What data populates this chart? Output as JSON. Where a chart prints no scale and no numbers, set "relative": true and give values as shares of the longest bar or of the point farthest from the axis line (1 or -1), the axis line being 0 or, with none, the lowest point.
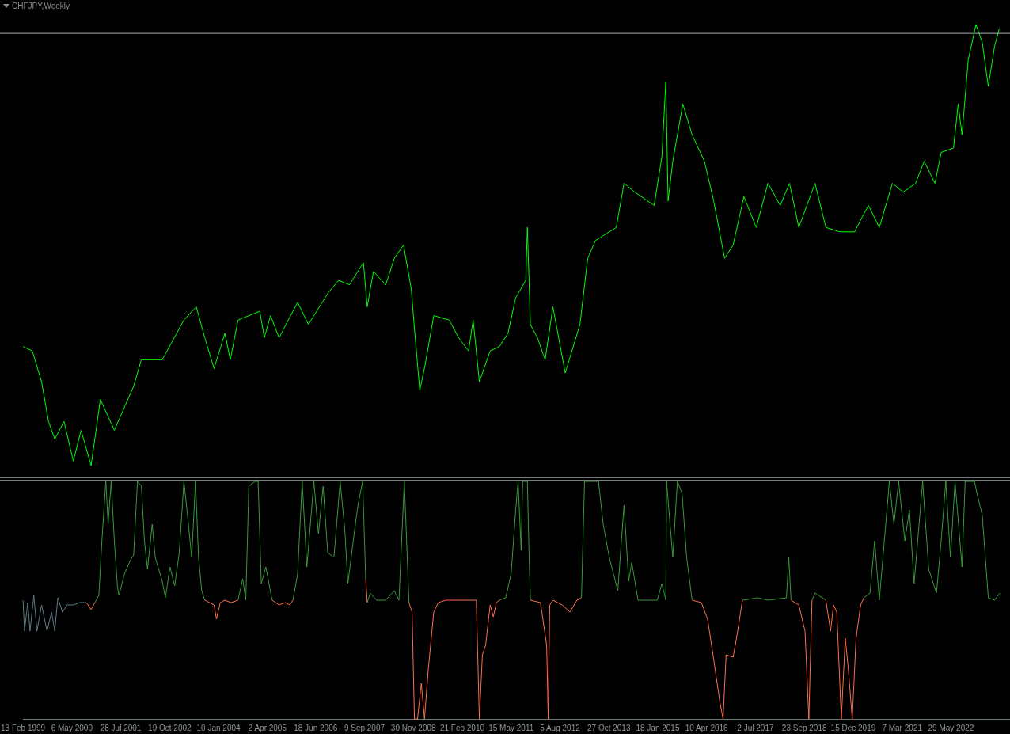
{
  "chart_data": [
    {
      "type": "line",
      "title": "CHFJPY,Weekly",
      "relative": true,
      "tick_labels": false,
      "xlim": [
        "1999-02-13",
        "2023-11-21"
      ],
      "ref_lines": [
        {
          "axis": "y",
          "value": 0.98,
          "color": "#a8b0b8"
        }
      ],
      "series": [
        {
          "color": "#00ff00",
          "x": [
            "1999-02-13",
            "1999-05-09",
            "1999-08-02",
            "1999-10-05",
            "1999-12-01",
            "2000-02-24",
            "2000-05-19",
            "2000-07-29",
            "2000-10-29",
            "2001-01-22",
            "2001-05-30",
            "2001-11-23",
            "2002-02-02",
            "2002-08-12",
            "2003-02-27",
            "2003-06-20",
            "2003-09-06",
            "2003-11-30",
            "2004-03-08",
            "2004-04-27",
            "2004-07-07",
            "2005-01-22",
            "2005-03-05",
            "2005-05-01",
            "2005-07-18",
            "2006-01-04",
            "2006-04-13",
            "2006-10-07",
            "2007-01-15",
            "2007-04-24",
            "2007-08-30",
            "2007-10-04",
            "2007-11-30",
            "2008-03-22",
            "2008-06-08",
            "2008-09-01",
            "2008-11-11",
            "2008-12-10",
            "2009-01-28",
            "2009-03-19",
            "2009-06-05",
            "2009-10-25",
            "2010-01-18",
            "2010-04-20",
            "2010-06-01",
            "2010-07-28",
            "2010-11-04",
            "2011-01-28",
            "2011-04-16",
            "2011-06-26",
            "2011-09-26",
            "2011-10-11",
            "2011-11-08",
            "2012-01-11",
            "2012-03-22",
            "2012-06-01",
            "2012-09-22",
            "2013-02-04",
            "2013-04-16",
            "2013-06-26",
            "2014-01-03",
            "2014-03-15",
            "2014-06-22",
            "2014-12-16",
            "2015-02-25",
            "2015-04-02",
            "2015-04-23",
            "2015-06-05",
            "2015-09-05",
            "2015-11-29",
            "2016-03-21",
            "2016-06-14",
            "2016-09-22",
            "2016-12-09",
            "2017-03-18",
            "2017-07-09",
            "2017-10-24",
            "2018-02-14",
            "2018-05-10",
            "2018-08-03",
            "2018-12-30",
            "2019-04-08",
            "2019-08-14",
            "2019-12-27",
            "2020-05-02",
            "2020-08-10",
            "2020-12-08",
            "2021-03-17",
            "2021-07-09",
            "2021-09-25",
            "2022-01-02",
            "2022-02-28",
            "2022-06-21",
            "2022-08-03",
            "2022-09-07",
            "2022-11-03",
            "2023-01-13",
            "2023-03-11",
            "2023-05-06",
            "2023-07-02",
            "2023-08-14"
          ],
          "values": [
            0.27,
            0.26,
            0.19,
            0.1,
            0.06,
            0.1,
            0.01,
            0.08,
            0,
            0.15,
            0.08,
            0.18,
            0.24,
            0.24,
            0.33,
            0.36,
            0.29,
            0.22,
            0.3,
            0.24,
            0.33,
            0.35,
            0.29,
            0.34,
            0.29,
            0.37,
            0.32,
            0.39,
            0.42,
            0.41,
            0.46,
            0.36,
            0.44,
            0.41,
            0.47,
            0.5,
            0.4,
            0.31,
            0.17,
            0.23,
            0.34,
            0.33,
            0.29,
            0.26,
            0.33,
            0.19,
            0.26,
            0.27,
            0.3,
            0.38,
            0.42,
            0.54,
            0.32,
            0.29,
            0.24,
            0.36,
            0.21,
            0.32,
            0.47,
            0.51,
            0.54,
            0.64,
            0.62,
            0.59,
            0.7,
            0.87,
            0.6,
            0.69,
            0.82,
            0.75,
            0.69,
            0.6,
            0.47,
            0.5,
            0.61,
            0.54,
            0.64,
            0.59,
            0.64,
            0.54,
            0.64,
            0.54,
            0.53,
            0.53,
            0.59,
            0.54,
            0.64,
            0.62,
            0.64,
            0.69,
            0.64,
            0.71,
            0.72,
            0.82,
            0.75,
            0.92,
            1,
            0.96,
            0.86,
            0.95,
            0.99
          ]
        }
      ]
    },
    {
      "type": "line",
      "relative": true,
      "tick_labels": "x",
      "xlim": [
        "1999-02-13",
        "2023-11-21"
      ],
      "xticks": [
        {
          "value": "1999-02-13",
          "label": "13 Feb 1999"
        },
        {
          "value": "2000-05-06",
          "label": "6 May 2000"
        },
        {
          "value": "2001-07-28",
          "label": "28 Jul 2001"
        },
        {
          "value": "2002-10-19",
          "label": "19 Oct 2002"
        },
        {
          "value": "2004-01-10",
          "label": "10 Jan 2004"
        },
        {
          "value": "2005-04-02",
          "label": "2 Apr 2005"
        },
        {
          "value": "2006-06-18",
          "label": "18 Jun 2006"
        },
        {
          "value": "2007-09-09",
          "label": "9 Sep 2007"
        },
        {
          "value": "2008-11-30",
          "label": "30 Nov 2008"
        },
        {
          "value": "2010-02-21",
          "label": "21 Feb 2010"
        },
        {
          "value": "2011-05-15",
          "label": "15 May 2011"
        },
        {
          "value": "2012-08-05",
          "label": "5 Aug 2012"
        },
        {
          "value": "2013-10-27",
          "label": "27 Oct 2013"
        },
        {
          "value": "2015-01-18",
          "label": "18 Jan 2015"
        },
        {
          "value": "2016-04-10",
          "label": "10 Apr 2016"
        },
        {
          "value": "2017-07-02",
          "label": "2 Jul 2017"
        },
        {
          "value": "2018-09-23",
          "label": "23 Sep 2018"
        },
        {
          "value": "2019-12-15",
          "label": "15 Dec 2019"
        },
        {
          "value": "2021-03-07",
          "label": "7 Mar 2021"
        },
        {
          "value": "2022-05-29",
          "label": "29 May 2022"
        }
      ],
      "series": [
        {
          "color": "#5e7c86",
          "x": [
            "1999-02-13",
            "1999-02-27",
            "1999-03-28",
            "1999-04-18",
            "1999-05-23",
            "1999-06-21",
            "1999-08-02",
            "1999-09-21",
            "1999-11-02",
            "1999-12-01",
            "1999-12-29",
            "2000-02-10",
            "2000-03-23",
            "2000-05-19",
            "2000-07-15",
            "2000-09-16"
          ],
          "values": [
            0.5,
            0.37,
            0.49,
            0.37,
            0.52,
            0.37,
            0.48,
            0.37,
            0.45,
            0.37,
            0.51,
            0.45,
            0.48,
            0.48,
            0.49,
            0.49
          ]
        },
        {
          "color": "#ff6d4e",
          "x": [
            "2000-09-16",
            "2000-10-29",
            "2000-12-03",
            "2001-12-28",
            "2003-09-06",
            "2003-10-19",
            "2003-11-30",
            "2003-12-22",
            "2004-01-26",
            "2004-03-08",
            "2004-05-04",
            "2004-07-07",
            "2004-12-10",
            "2005-05-15",
            "2005-07-18",
            "2005-09-13",
            "2005-10-25",
            "2005-11-22",
            "2006-10-07",
            "2007-09-20",
            "2007-10-04",
            "2008-03-22",
            "2008-10-21",
            "2008-11-18",
            "2008-12-10",
            "2009-01-07",
            "2009-02-11",
            "2009-03-12",
            "2009-04-16",
            "2009-06-05",
            "2009-07-17",
            "2009-09-26",
            "2010-06-30",
            "2010-07-28",
            "2010-08-25",
            "2010-09-23",
            "2010-11-04",
            "2010-12-03",
            "2010-12-31",
            "2011-01-28",
            "2011-07-18",
            "2011-11-08",
            "2012-02-08",
            "2012-04-05",
            "2012-04-19",
            "2012-05-03",
            "2012-06-01",
            "2012-08-25",
            "2012-11-04",
            "2013-01-07",
            "2013-02-18",
            "2014-07-21",
            "2015-11-29",
            "2016-02-22",
            "2016-04-19",
            "2016-06-14",
            "2016-08-10",
            "2016-09-08",
            "2016-10-06",
            "2016-12-09",
            "2017-01-20",
            "2017-03-04",
            "2017-10-24",
            "2018-05-24",
            "2018-08-03",
            "2018-09-29",
            "2018-11-03",
            "2018-12-02",
            "2018-12-30",
            "2019-04-08",
            "2019-05-21",
            "2019-06-18",
            "2019-07-17",
            "2019-08-28",
            "2019-10-03",
            "2019-10-31",
            "2019-12-06",
            "2020-01-10",
            "2020-02-21",
            "2020-03-21"
          ],
          "values": [
            0.49,
            0.46,
            0.49,
            null,
            0.5,
            0.49,
            0.48,
            0.42,
            0.49,
            0.5,
            0.49,
            0.5,
            null,
            0.5,
            0.48,
            0.49,
            0.48,
            0.5,
            null,
            0.59,
            0.49,
            null,
            0.49,
            0.45,
            0,
            0,
            0.15,
            0,
            0.21,
            0.45,
            0.49,
            0.5,
            0.5,
            0,
            0.27,
            0.31,
            0.48,
            0.43,
            0.49,
            0.5,
            null,
            0.5,
            0.49,
            0.31,
            0,
            0.48,
            0.5,
            0.48,
            0.45,
            0.5,
            0.51,
            null,
            0.5,
            0.49,
            0.42,
            0.25,
            0.07,
            0,
            0.27,
            0.26,
            0.37,
            0.5,
            null,
            0.5,
            0.48,
            0.37,
            0,
            0.5,
            null,
            0.5,
            0.37,
            0.48,
            0.45,
            0,
            0.34,
            0.21,
            0,
            0.34,
            0.48,
            0.51
          ]
        },
        {
          "color": "#3a9a3a",
          "x": [
            "2000-12-03",
            "2001-01-08",
            "2001-02-05",
            "2001-03-13",
            "2001-04-03",
            "2001-05-01",
            "2001-05-30",
            "2001-06-27",
            "2001-07-11",
            "2001-08-30",
            "2001-10-26",
            "2001-11-23",
            "2001-12-28",
            "2002-02-02",
            "2002-03-02",
            "2002-03-30",
            "2002-05-12",
            "2002-06-09",
            "2002-08-12",
            "2002-09-10",
            "2002-10-22",
            "2002-12-04",
            "2003-01-15",
            "2003-02-27",
            "2003-03-27",
            "2003-05-09",
            "2003-06-13",
            "2003-07-11",
            "2003-08-09",
            "2003-09-06",
            "2003-10-19",
            "2004-07-07",
            "2004-08-19",
            "2004-09-16",
            "2004-10-14",
            "2004-12-10",
            "2005-01-07",
            "2005-02-05",
            "2005-03-19",
            "2005-05-15",
            "2005-07-18",
            "2005-11-22",
            "2006-01-04",
            "2006-02-15",
            "2006-03-30",
            "2006-06-02",
            "2006-07-14",
            "2006-08-26",
            "2006-10-07",
            "2006-12-03",
            "2007-01-29",
            "2007-03-12",
            "2007-04-10",
            "2007-05-29",
            "2007-07-11",
            "2007-08-23",
            "2007-09-20",
            "2007-09-27",
            "2007-10-04",
            "2007-11-01",
            "2007-12-28",
            "2008-03-22",
            "2008-06-08",
            "2008-07-21",
            "2008-09-08",
            "2008-10-21",
            "2009-06-05",
            "2011-01-28",
            "2011-03-26",
            "2011-05-15",
            "2011-06-26",
            "2011-07-18",
            "2011-08-15",
            "2011-08-29",
            "2011-10-11",
            "2011-10-25",
            "2011-11-08",
            "2012-06-01",
            "2013-02-18",
            "2013-03-18",
            "2013-07-24",
            "2013-09-05",
            "2013-10-31",
            "2014-01-17",
            "2014-03-15",
            "2014-04-27",
            "2014-05-25",
            "2014-07-21",
            "2015-01-14",
            "2015-02-25",
            "2015-04-02",
            "2015-04-09",
            "2015-06-05",
            "2015-07-17",
            "2015-08-29",
            "2015-10-10",
            "2015-11-29",
            "2016-08-10",
            "2017-03-04",
            "2017-07-24",
            "2017-10-24",
            "2018-04-12",
            "2018-05-03",
            "2018-05-24",
            "2018-08-03",
            "2018-12-02",
            "2018-12-30",
            "2019-04-08",
            "2019-06-18",
            "2020-03-21",
            "2020-05-17",
            "2020-06-28",
            "2020-08-10",
            "2020-11-10",
            "2020-12-22",
            "2021-02-03",
            "2021-04-01",
            "2021-05-13",
            "2021-06-25",
            "2021-09-11",
            "2021-11-06",
            "2022-01-16",
            "2022-02-28",
            "2022-04-11",
            "2022-05-24",
            "2022-07-05",
            "2022-09-07",
            "2022-10-06",
            "2022-12-30",
            "2023-01-27",
            "2023-03-11",
            "2023-05-06",
            "2023-07-02",
            "2023-08-20"
          ],
          "values": [
            0.49,
            0.52,
            0.75,
            1,
            0.82,
            1,
            0.75,
            0.56,
            0.52,
            0.61,
            0.67,
            0.69,
            1,
            0.98,
            0.75,
            0.63,
            0.82,
            0.68,
            0.58,
            0.51,
            0.64,
            0.56,
            0.7,
            1,
            0.88,
            0.68,
            1,
            0.68,
            0.54,
            0.5,
            null,
            0.5,
            0.59,
            0.5,
            0.98,
            1,
            1,
            0.57,
            0.64,
            0.5,
            null,
            0.5,
            0.61,
            1,
            0.64,
            1,
            0.78,
            0.98,
            0.7,
            0.68,
            1,
            0.8,
            0.57,
            0.75,
            0.9,
            1,
            0.59,
            null,
            0.49,
            0.53,
            0.5,
            0.5,
            0.54,
            0.5,
            1,
            0.49,
            null,
            0.5,
            0.51,
            0.61,
            0.88,
            1,
            0.71,
            1,
            1,
            0.72,
            0.5,
            null,
            0.51,
            1,
            1,
            0.82,
            0.68,
            0.54,
            0.9,
            0.58,
            0.66,
            0.5,
            0.5,
            0.57,
            0.5,
            1,
            0.68,
            1,
            0.95,
            0.68,
            0.5,
            null,
            0.5,
            0.51,
            0.5,
            0.51,
            0.68,
            0.5,
            null,
            0.5,
            0.53,
            0.5,
            null,
            0.51,
            0.53,
            0.75,
            0.5,
            1,
            0.82,
            1,
            0.75,
            0.88,
            0.57,
            1,
            0.63,
            0.53,
            0.75,
            1,
            0.68,
            1,
            0.64,
            1,
            1,
            0.94,
            0.86,
            0.51,
            0.5,
            0.53
          ]
        }
      ]
    }
  ]
}
